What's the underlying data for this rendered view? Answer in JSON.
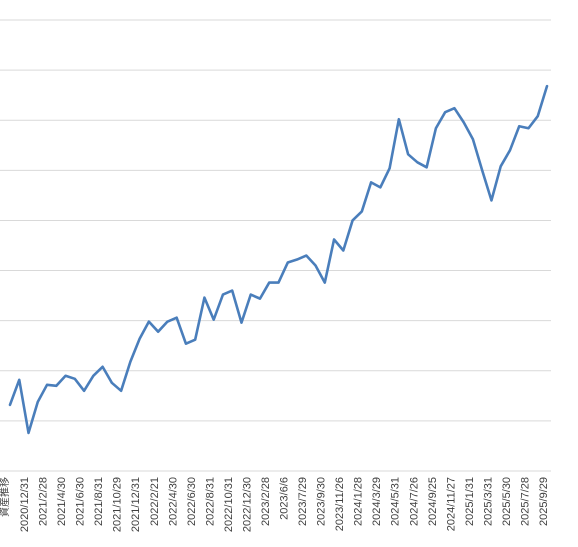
{
  "chart_data": {
    "type": "line",
    "title": "",
    "xlabel": "",
    "ylabel": "",
    "corner_label": "資産推移",
    "grid": true,
    "legend": "none",
    "ylim": [
      0,
      9
    ],
    "series_color": "#4a7ebb",
    "gridline_color": "#d9d9d9",
    "x_tick_labels": [
      "2020/12/31",
      "2021/2/28",
      "2021/4/30",
      "2021/6/30",
      "2021/8/31",
      "2021/10/29",
      "2021/12/31",
      "2022/2/21",
      "2022/4/30",
      "2022/6/30",
      "2022/8/31",
      "2022/10/31",
      "2022/12/30",
      "2023/2/28",
      "2023/6/6",
      "2023/7/29",
      "2023/9/30",
      "2023/11/26",
      "2024/1/28",
      "2024/3/29",
      "2024/5/31",
      "2024/7/26",
      "2024/9/25",
      "2024/11/27",
      "2025/1/31",
      "2025/3/31",
      "2025/5/30",
      "2025/7/28",
      "2025/9/29"
    ],
    "series": [
      {
        "values": [
          1.32,
          1.82,
          0.76,
          1.38,
          1.72,
          1.7,
          1.9,
          1.84,
          1.6,
          1.9,
          2.08,
          1.76,
          1.6,
          2.18,
          2.64,
          2.98,
          2.78,
          2.98,
          3.06,
          2.54,
          2.62,
          3.46,
          3.02,
          3.52,
          3.6,
          2.96,
          3.52,
          3.44,
          3.76,
          3.76,
          4.16,
          4.22,
          4.3,
          4.1,
          3.76,
          4.62,
          4.4,
          5.0,
          5.18,
          5.76,
          5.66,
          6.04,
          7.02,
          6.32,
          6.16,
          6.06,
          6.84,
          7.16,
          7.24,
          6.96,
          6.62,
          6.0,
          5.4,
          6.08,
          6.4,
          6.88,
          6.84,
          7.08,
          7.68
        ]
      }
    ]
  }
}
